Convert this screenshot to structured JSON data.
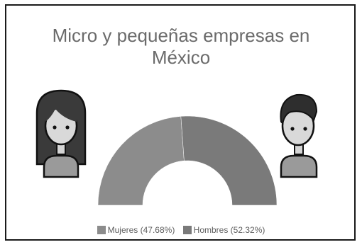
{
  "chart_data": {
    "type": "pie",
    "variant": "semicircle-donut",
    "title_lines": [
      "Micro y pequeñas empresas en",
      "México"
    ],
    "series": [
      {
        "name": "Mujeres",
        "value": 47.68,
        "color": "#8c8c8c"
      },
      {
        "name": "Hombres",
        "value": 52.32,
        "color": "#7a7a7a"
      }
    ],
    "legend": {
      "position": "bottom",
      "entries": [
        "Mujeres (47.68%)",
        "Hombres (52.32%)"
      ]
    }
  },
  "icons": {
    "left": "woman-avatar-icon",
    "right": "man-avatar-icon"
  }
}
